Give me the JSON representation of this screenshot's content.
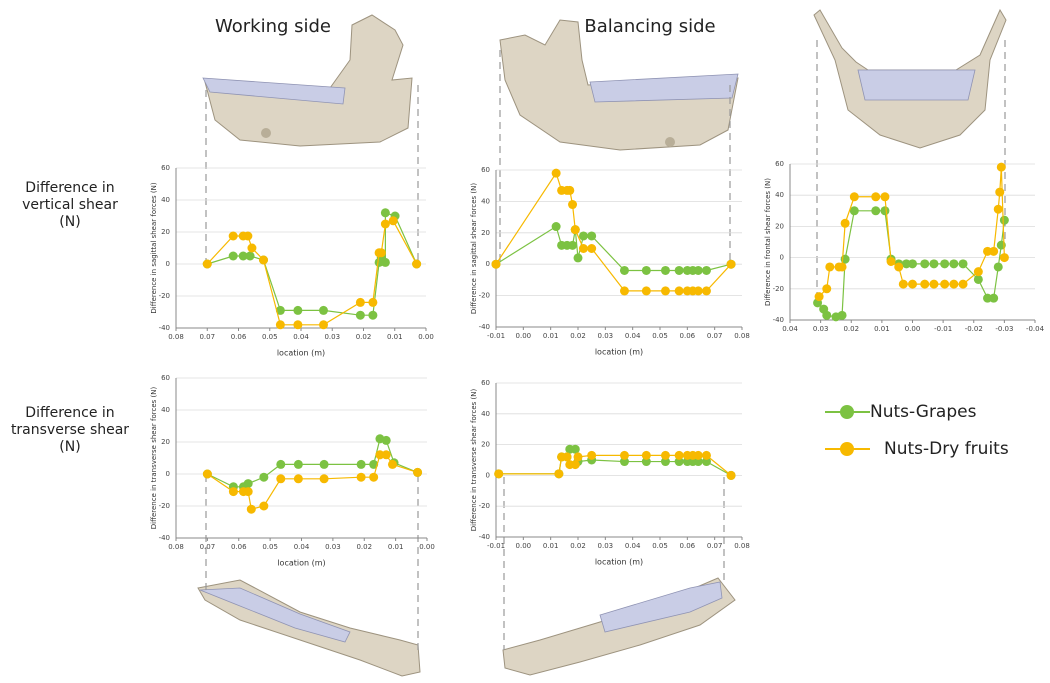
{
  "headers": [
    "Working side",
    "Balancing side"
  ],
  "row_labels": [
    [
      "Difference in",
      "vertical shear",
      "(N)"
    ],
    [
      "Difference in",
      "transverse shear",
      "(N)"
    ]
  ],
  "legend": [
    {
      "name": "Nuts-Grapes",
      "color": "#7cc242"
    },
    {
      "name": "Nuts-Dry fruits",
      "color": "#f7b900"
    }
  ],
  "chart_data": [
    {
      "type": "line",
      "ylabel": "Difference in sagittal shear forces (N)",
      "xlabel": "location (m)",
      "xlim": [
        0.08,
        0
      ],
      "xticks": [
        0.08,
        0.07,
        0.06,
        0.05,
        0.04,
        0.03,
        0.02,
        0.01,
        {
          "value": 0,
          "label": "0.00"
        }
      ],
      "ylim": [
        -40,
        60
      ],
      "yticks": [
        -40,
        -20,
        0,
        20,
        40,
        60
      ],
      "grid": true,
      "series": [
        {
          "color": "#7cc242",
          "x": [
            0.07,
            0.0617,
            0.0585,
            0.0563,
            0.052,
            0.0466,
            0.041,
            0.0328,
            0.021,
            0.017,
            0.015,
            0.0143,
            0.013,
            0.013,
            0.0099,
            0.003
          ],
          "values": [
            0,
            5,
            5,
            5,
            2.5,
            -29,
            -29,
            -29,
            -32,
            -32,
            1,
            4,
            1,
            32,
            30,
            0
          ]
        },
        {
          "color": "#f7b900",
          "x": [
            0.07,
            0.0617,
            0.0585,
            0.057,
            0.0557,
            0.052,
            0.0466,
            0.041,
            0.0328,
            0.021,
            0.017,
            0.015,
            0.0143,
            0.013,
            0.0105,
            0.003
          ],
          "values": [
            0,
            17.5,
            17.5,
            17.5,
            10,
            2.5,
            -38,
            -38,
            -38,
            -24,
            -24,
            7,
            7,
            25,
            27,
            0
          ]
        }
      ]
    },
    {
      "type": "line",
      "ylabel": "Difference in sagittal shear forces (N)",
      "xlabel": "location (m)",
      "xlim": [
        -0.01,
        0.08
      ],
      "xticks": [
        -0.01,
        {
          "value": 0,
          "label": "0.00"
        },
        0.01,
        0.02,
        0.03,
        0.04,
        0.05,
        0.06,
        0.07,
        0.08
      ],
      "ylim": [
        -40,
        60
      ],
      "yticks": [
        -40,
        -20,
        0,
        20,
        40,
        60
      ],
      "grid": true,
      "series": [
        {
          "color": "#7cc242",
          "x": [
            -0.01,
            0.012,
            0.014,
            0.016,
            0.018,
            0.019,
            0.02,
            0.022,
            0.025,
            0.037,
            0.045,
            0.052,
            0.057,
            0.06,
            0.062,
            0.064,
            0.067,
            0.076
          ],
          "values": [
            0,
            24,
            12,
            12,
            12,
            22,
            4,
            18,
            18,
            -4,
            -4,
            -4,
            -4,
            -4,
            -4,
            -4,
            -4,
            0
          ]
        },
        {
          "color": "#f7b900",
          "x": [
            -0.01,
            0.012,
            0.014,
            0.016,
            0.017,
            0.018,
            0.019,
            0.022,
            0.025,
            0.037,
            0.045,
            0.052,
            0.057,
            0.06,
            0.062,
            0.064,
            0.067,
            0.076
          ],
          "values": [
            0,
            58,
            47,
            47,
            47,
            38,
            22,
            10,
            10,
            -17,
            -17,
            -17,
            -17,
            -17,
            -17,
            -17,
            -17,
            0
          ]
        }
      ]
    },
    {
      "type": "line",
      "ylabel": "Difference in frontal shear forces (N)",
      "xlim": [
        0.04,
        -0.04
      ],
      "xticks": [
        0.04,
        0.03,
        0.02,
        0.01,
        {
          "value": 0,
          "label": "0.00"
        },
        -0.01,
        -0.02,
        -0.03,
        -0.04
      ],
      "ylim": [
        -40,
        60
      ],
      "yticks": [
        -40,
        -20,
        0,
        20,
        40,
        60
      ],
      "grid": true,
      "series": [
        {
          "color": "#7cc242",
          "x": [
            0.031,
            0.029,
            0.028,
            0.025,
            0.023,
            0.022,
            0.019,
            0.012,
            0.009,
            0.007,
            0.0045,
            0.002,
            0,
            -0.004,
            -0.007,
            -0.0105,
            -0.0135,
            -0.0165,
            -0.0215,
            -0.0245,
            -0.0265,
            -0.028,
            -0.029,
            -0.03
          ],
          "values": [
            -29,
            -33,
            -37,
            -38,
            -37,
            -1,
            30,
            30,
            30,
            -1,
            -4,
            -4,
            -4,
            -4,
            -4,
            -4,
            -4,
            -4,
            -14,
            -26,
            -26,
            -6,
            8,
            24
          ]
        },
        {
          "color": "#f7b900",
          "x": [
            0.0305,
            0.028,
            0.027,
            0.024,
            0.023,
            0.022,
            0.019,
            0.012,
            0.009,
            0.007,
            0.0045,
            0.003,
            0,
            -0.004,
            -0.007,
            -0.0105,
            -0.0135,
            -0.0165,
            -0.0215,
            -0.0245,
            -0.0265,
            -0.028,
            -0.0285,
            -0.029,
            -0.03
          ],
          "values": [
            -25,
            -20,
            -6,
            -6,
            -6,
            22,
            39,
            39,
            39,
            -2.5,
            -6,
            -17,
            -17,
            -17,
            -17,
            -17,
            -17,
            -17,
            -9,
            4,
            4,
            31,
            42,
            58,
            0
          ]
        }
      ]
    },
    {
      "type": "line",
      "ylabel": "Difference in transverse shear forces (N)",
      "xlabel": "location (m)",
      "xlim": [
        0.08,
        0
      ],
      "xticks": [
        0.08,
        0.07,
        0.06,
        0.05,
        0.04,
        0.03,
        0.02,
        0.01,
        {
          "value": 0,
          "label": "0.00"
        }
      ],
      "ylim": [
        -40,
        60
      ],
      "yticks": [
        -40,
        -20,
        0,
        20,
        40,
        60
      ],
      "grid": true,
      "series": [
        {
          "color": "#7cc242",
          "x": [
            0.07,
            0.0617,
            0.0585,
            0.057,
            0.052,
            0.0466,
            0.041,
            0.0328,
            0.021,
            0.017,
            0.015,
            0.013,
            0.0105,
            0.003
          ],
          "values": [
            0,
            -8,
            -8,
            -6,
            -2,
            6,
            6,
            6,
            6,
            6,
            22,
            21,
            7,
            1
          ]
        },
        {
          "color": "#f7b900",
          "x": [
            0.07,
            0.0617,
            0.0585,
            0.057,
            0.056,
            0.052,
            0.0466,
            0.041,
            0.0328,
            0.021,
            0.017,
            0.015,
            0.013,
            0.011,
            0.003
          ],
          "values": [
            0,
            -11,
            -11,
            -11,
            -22,
            -20,
            -3,
            -3,
            -3,
            -2,
            -2,
            12,
            12,
            6,
            1
          ]
        }
      ]
    },
    {
      "type": "line",
      "ylabel": "Difference in transverse shear forces (N)",
      "xlabel": "location (m)",
      "xlim": [
        -0.01,
        0.08
      ],
      "xticks": [
        -0.01,
        {
          "value": 0,
          "label": "0.00"
        },
        0.01,
        0.02,
        0.03,
        0.04,
        0.05,
        0.06,
        0.07,
        0.08
      ],
      "ylim": [
        -40,
        60
      ],
      "yticks": [
        -40,
        -20,
        0,
        20,
        40,
        60
      ],
      "grid": true,
      "series": [
        {
          "color": "#7cc242",
          "x": [
            -0.009,
            0.013,
            0.014,
            0.016,
            0.017,
            0.019,
            0.02,
            0.025,
            0.037,
            0.045,
            0.052,
            0.057,
            0.06,
            0.062,
            0.064,
            0.067,
            0.076
          ],
          "values": [
            1,
            1,
            12,
            12,
            17,
            17,
            9,
            10,
            9,
            9,
            9,
            9,
            9,
            9,
            9,
            9,
            0
          ]
        },
        {
          "color": "#f7b900",
          "x": [
            -0.009,
            0.013,
            0.014,
            0.016,
            0.017,
            0.019,
            0.02,
            0.025,
            0.037,
            0.045,
            0.052,
            0.057,
            0.06,
            0.062,
            0.064,
            0.067,
            0.076
          ],
          "values": [
            1,
            1,
            12,
            12,
            7,
            7,
            12,
            13,
            13,
            13,
            13,
            13,
            13,
            13,
            13,
            13,
            0
          ]
        }
      ]
    }
  ]
}
